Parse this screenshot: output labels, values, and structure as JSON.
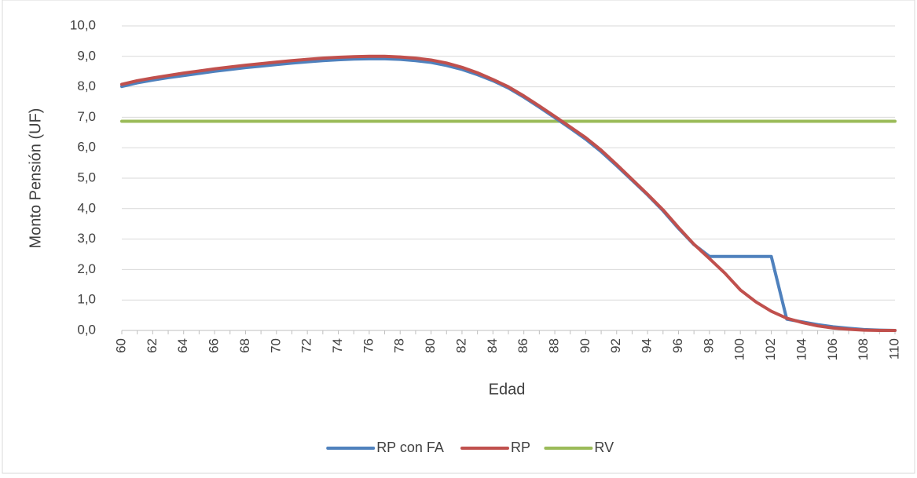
{
  "chart_data": {
    "type": "line",
    "xlabel": "Edad",
    "ylabel": "Monto Pensión (UF)",
    "x": [
      60,
      61,
      62,
      63,
      64,
      65,
      66,
      67,
      68,
      69,
      70,
      71,
      72,
      73,
      74,
      75,
      76,
      77,
      78,
      79,
      80,
      81,
      82,
      83,
      84,
      85,
      86,
      87,
      88,
      89,
      90,
      91,
      92,
      93,
      94,
      95,
      96,
      97,
      98,
      99,
      100,
      101,
      102,
      103,
      104,
      105,
      106,
      107,
      108,
      109,
      110
    ],
    "x_tick_labels": [
      "60",
      "62",
      "64",
      "66",
      "68",
      "70",
      "72",
      "74",
      "76",
      "78",
      "80",
      "82",
      "84",
      "86",
      "88",
      "90",
      "92",
      "94",
      "96",
      "98",
      "100",
      "102",
      "104",
      "106",
      "108",
      "110"
    ],
    "y_tick_labels": [
      "0,0",
      "1,0",
      "2,0",
      "3,0",
      "4,0",
      "5,0",
      "6,0",
      "7,0",
      "8,0",
      "9,0",
      "10,0"
    ],
    "ylim": [
      0,
      10
    ],
    "xlim": [
      60,
      110
    ],
    "grid": true,
    "legend_position": "bottom",
    "series": [
      {
        "name": "RP con FA",
        "color": "#4f81bd",
        "values": [
          8.01,
          8.13,
          8.22,
          8.3,
          8.37,
          8.44,
          8.51,
          8.57,
          8.63,
          8.68,
          8.73,
          8.78,
          8.82,
          8.86,
          8.89,
          8.91,
          8.92,
          8.92,
          8.9,
          8.86,
          8.8,
          8.7,
          8.57,
          8.4,
          8.2,
          7.96,
          7.66,
          7.33,
          6.99,
          6.64,
          6.28,
          5.87,
          5.41,
          4.93,
          4.45,
          3.93,
          3.35,
          2.82,
          2.43,
          2.43,
          2.43,
          2.43,
          2.43,
          0.37,
          0.28,
          0.19,
          0.12,
          0.07,
          0.03,
          0.01,
          0.0
        ]
      },
      {
        "name": "RP",
        "color": "#c0504d",
        "values": [
          8.08,
          8.2,
          8.29,
          8.37,
          8.45,
          8.52,
          8.59,
          8.65,
          8.71,
          8.76,
          8.81,
          8.86,
          8.9,
          8.94,
          8.97,
          8.99,
          9.0,
          9.0,
          8.98,
          8.94,
          8.88,
          8.78,
          8.64,
          8.46,
          8.24,
          8.0,
          7.7,
          7.37,
          7.03,
          6.68,
          6.33,
          5.92,
          5.45,
          4.96,
          4.47,
          3.96,
          3.38,
          2.83,
          2.36,
          1.88,
          1.33,
          0.94,
          0.63,
          0.4,
          0.26,
          0.15,
          0.08,
          0.04,
          0.01,
          0.0,
          0.0
        ]
      },
      {
        "name": "RV",
        "color": "#9bbb59",
        "values": [
          6.87,
          6.87,
          6.87,
          6.87,
          6.87,
          6.87,
          6.87,
          6.87,
          6.87,
          6.87,
          6.87,
          6.87,
          6.87,
          6.87,
          6.87,
          6.87,
          6.87,
          6.87,
          6.87,
          6.87,
          6.87,
          6.87,
          6.87,
          6.87,
          6.87,
          6.87,
          6.87,
          6.87,
          6.87,
          6.87,
          6.87,
          6.87,
          6.87,
          6.87,
          6.87,
          6.87,
          6.87,
          6.87,
          6.87,
          6.87,
          6.87,
          6.87,
          6.87,
          6.87,
          6.87,
          6.87,
          6.87,
          6.87,
          6.87,
          6.87,
          6.87
        ]
      }
    ]
  }
}
